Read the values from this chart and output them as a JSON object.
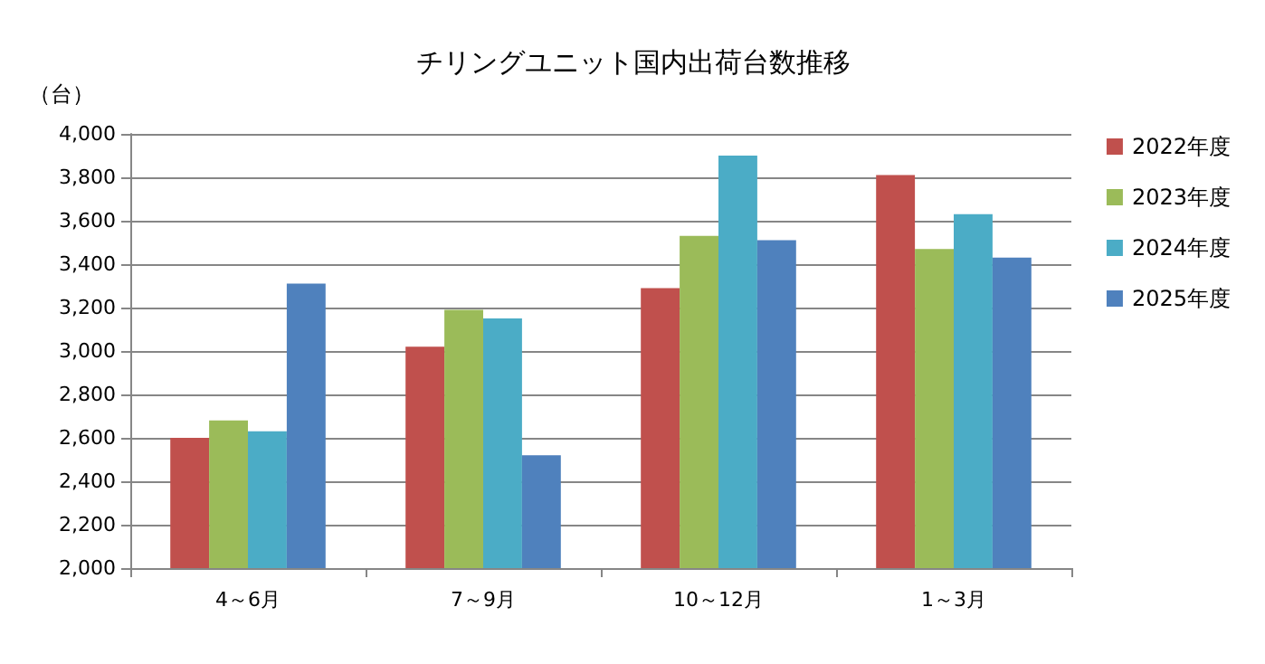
{
  "chart_data": {
    "type": "bar",
    "title": "チリングユニット国内出荷台数推移",
    "ylabel": "（台）",
    "categories": [
      "4～6月",
      "7～9月",
      "10～12月",
      "1～3月"
    ],
    "series": [
      {
        "name": "2022年度",
        "color": "#c0504d",
        "values": [
          2600,
          3020,
          3290,
          3810
        ]
      },
      {
        "name": "2023年度",
        "color": "#9bbb59",
        "values": [
          2680,
          3190,
          3530,
          3470
        ]
      },
      {
        "name": "2024年度",
        "color": "#4bacc6",
        "values": [
          2630,
          3150,
          3900,
          3630
        ]
      },
      {
        "name": "2025年度",
        "color": "#4f81bd",
        "values": [
          3310,
          2520,
          3510,
          3430
        ]
      }
    ],
    "ylim": [
      2000,
      4000
    ],
    "yticks": [
      {
        "value": 2000,
        "label": "2,000"
      },
      {
        "value": 2200,
        "label": "2,200"
      },
      {
        "value": 2400,
        "label": "2,400"
      },
      {
        "value": 2600,
        "label": "2,600"
      },
      {
        "value": 2800,
        "label": "2,800"
      },
      {
        "value": 3000,
        "label": "3,000"
      },
      {
        "value": 3200,
        "label": "3,200"
      },
      {
        "value": 3400,
        "label": "3,400"
      },
      {
        "value": 3600,
        "label": "3,600"
      },
      {
        "value": 3800,
        "label": "3,800"
      },
      {
        "value": 4000,
        "label": "4,000"
      }
    ],
    "grid": "y",
    "legend": "right"
  }
}
